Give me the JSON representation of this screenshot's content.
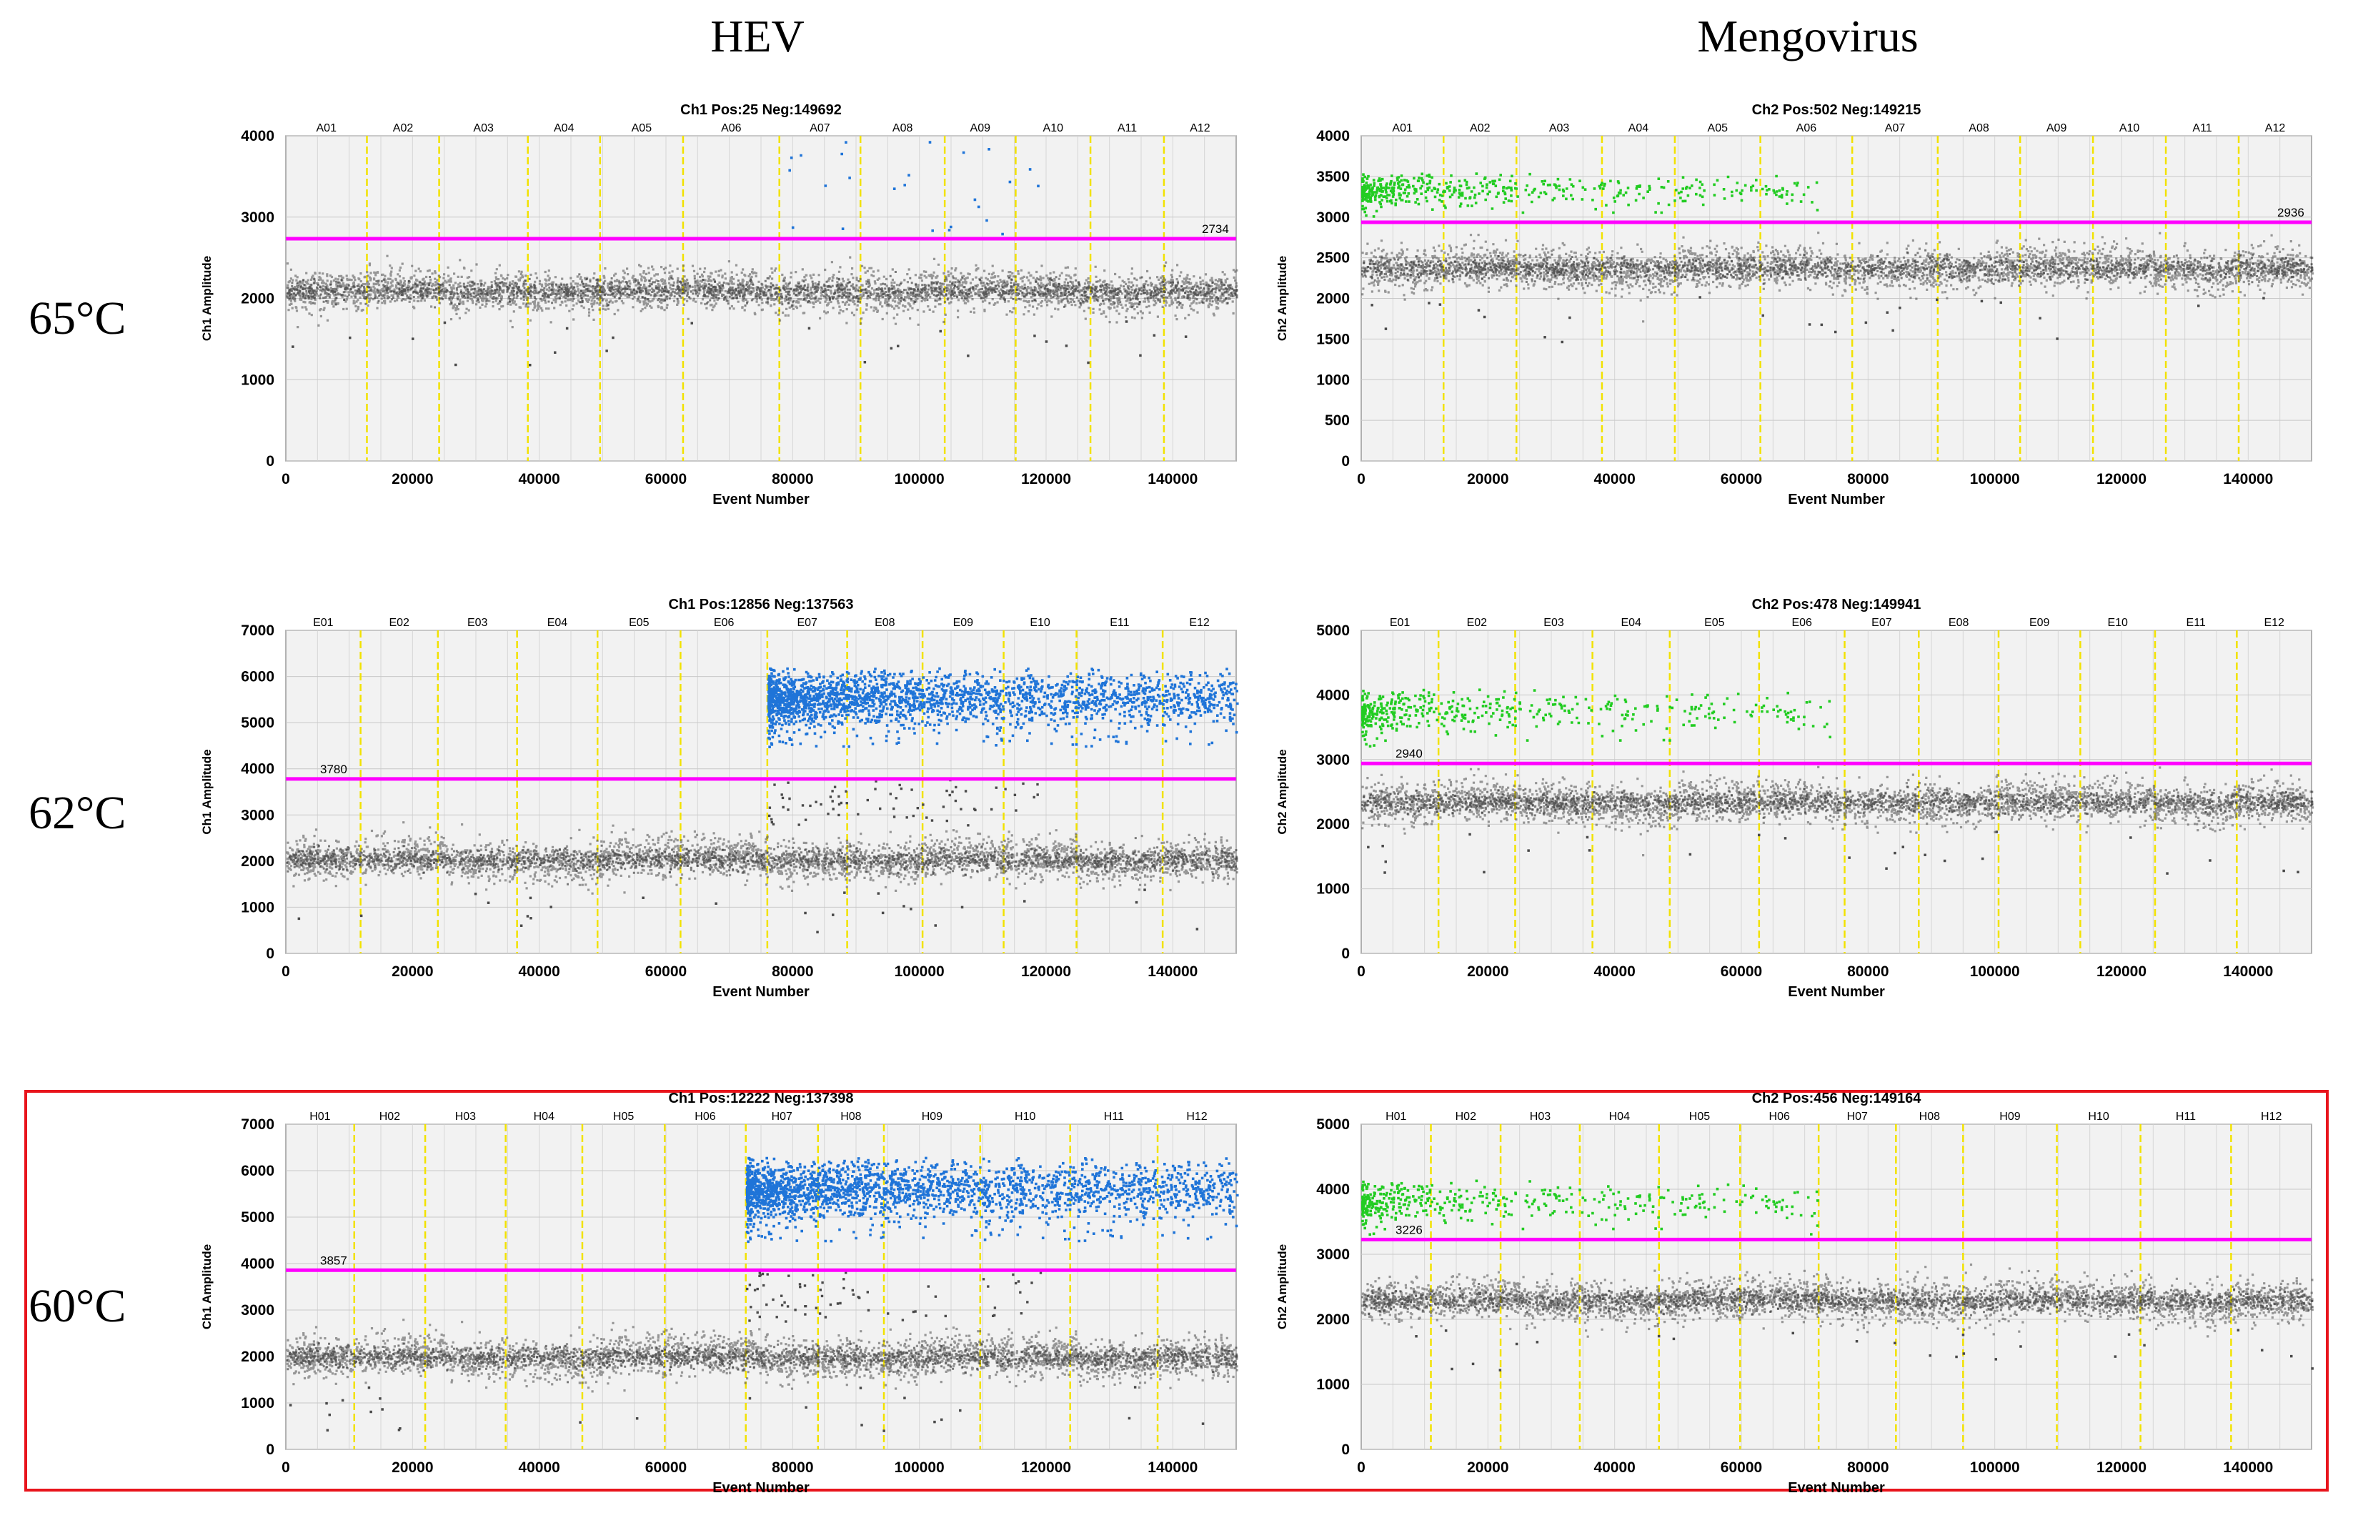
{
  "figure": {
    "column_headers": [
      "HEV",
      "Mengovirus"
    ],
    "row_labels": [
      "65°C",
      "62°C",
      "60°C"
    ],
    "highlighted_row": "60°C",
    "colors": {
      "highlight": "#e8141c",
      "threshold": "#ff00ff",
      "negative": "#4a4a4a",
      "hev_positive": "#1f74d8",
      "mengo_positive": "#22cc22",
      "well_divider": "#f2e200",
      "plot_bg": "#f2f2f2"
    }
  },
  "chart_data": [
    {
      "id": "hev-65",
      "type": "scatter",
      "title": "Ch1 Pos:25 Neg:149692",
      "xlabel": "Event Number",
      "ylabel": "Ch1 Amplitude",
      "xlim": [
        0,
        150000
      ],
      "ylim": [
        0,
        4000
      ],
      "yticks": [
        0,
        1000,
        2000,
        3000,
        4000
      ],
      "xticks": [
        0,
        20000,
        40000,
        60000,
        80000,
        100000,
        120000,
        140000
      ],
      "wells": [
        "A01",
        "A02",
        "A03",
        "A04",
        "A05",
        "A06",
        "A07",
        "A08",
        "A09",
        "A10",
        "A11",
        "A12"
      ],
      "well_boundaries": [
        12800,
        24200,
        38200,
        49600,
        62700,
        77900,
        90700,
        104000,
        115200,
        127000,
        138600
      ],
      "threshold": 2734,
      "threshold_label": "2734",
      "negative_band": 2100,
      "positive_color": "hev",
      "positive_cluster": {
        "count": 25,
        "x_range": [
          79000,
          120000
        ],
        "y_range": [
          2800,
          3950
        ]
      }
    },
    {
      "id": "mengo-65",
      "type": "scatter",
      "title": "Ch2 Pos:502 Neg:149215",
      "xlabel": "Event Number",
      "ylabel": "Ch2 Amplitude",
      "xlim": [
        0,
        150000
      ],
      "ylim": [
        0,
        4000
      ],
      "yticks": [
        0,
        500,
        1000,
        1500,
        2000,
        2500,
        3000,
        3500,
        4000
      ],
      "xticks": [
        0,
        20000,
        40000,
        60000,
        80000,
        100000,
        120000,
        140000
      ],
      "wells": [
        "A01",
        "A02",
        "A03",
        "A04",
        "A05",
        "A06",
        "A07",
        "A08",
        "A09",
        "A10",
        "A11",
        "A12"
      ],
      "well_boundaries": [
        13000,
        24500,
        38000,
        49500,
        63000,
        77500,
        91000,
        104000,
        115500,
        127000,
        138500
      ],
      "threshold": 2936,
      "threshold_label": "2936",
      "negative_band": 2380,
      "positive_color": "mengo",
      "positive_cluster": {
        "count": 502,
        "x_range": [
          0,
          72000
        ],
        "y_range": [
          3000,
          3550
        ]
      }
    },
    {
      "id": "hev-62",
      "type": "scatter",
      "title": "Ch1 Pos:12856 Neg:137563",
      "xlabel": "Event Number",
      "ylabel": "Ch1 Amplitude",
      "xlim": [
        0,
        150000
      ],
      "ylim": [
        0,
        7000
      ],
      "yticks": [
        0,
        1000,
        2000,
        3000,
        4000,
        5000,
        6000,
        7000
      ],
      "xticks": [
        0,
        20000,
        40000,
        60000,
        80000,
        100000,
        120000,
        140000
      ],
      "wells": [
        "E01",
        "E02",
        "E03",
        "E04",
        "E05",
        "E06",
        "E07",
        "E08",
        "E09",
        "E10",
        "E11",
        "E12"
      ],
      "well_boundaries": [
        11800,
        24000,
        36500,
        49200,
        62300,
        76000,
        88600,
        100500,
        113300,
        124800,
        138400
      ],
      "threshold": 3780,
      "threshold_label": "3780",
      "negative_band": 2050,
      "positive_color": "hev",
      "positive_cluster": {
        "count": 12856,
        "x_range": [
          76000,
          150000
        ],
        "y_range": [
          4500,
          6200
        ]
      }
    },
    {
      "id": "mengo-62",
      "type": "scatter",
      "title": "Ch2 Pos:478 Neg:149941",
      "xlabel": "Event Number",
      "ylabel": "Ch2 Amplitude",
      "xlim": [
        0,
        150000
      ],
      "ylim": [
        0,
        5000
      ],
      "yticks": [
        0,
        1000,
        2000,
        3000,
        4000,
        5000
      ],
      "xticks": [
        0,
        20000,
        40000,
        60000,
        80000,
        100000,
        120000,
        140000
      ],
      "wells": [
        "E01",
        "E02",
        "E03",
        "E04",
        "E05",
        "E06",
        "E07",
        "E08",
        "E09",
        "E10",
        "E11",
        "E12"
      ],
      "well_boundaries": [
        12200,
        24300,
        36500,
        48700,
        62800,
        76300,
        88000,
        100600,
        113500,
        125300,
        138200
      ],
      "threshold": 2940,
      "threshold_label": "2940",
      "negative_band": 2350,
      "positive_color": "mengo",
      "positive_cluster": {
        "count": 478,
        "x_range": [
          0,
          74000
        ],
        "y_range": [
          3200,
          4100
        ]
      }
    },
    {
      "id": "hev-60",
      "type": "scatter",
      "title": "Ch1 Pos:12222 Neg:137398",
      "xlabel": "Event Number",
      "ylabel": "Ch1 Amplitude",
      "xlim": [
        0,
        150000
      ],
      "ylim": [
        0,
        7000
      ],
      "yticks": [
        0,
        1000,
        2000,
        3000,
        4000,
        5000,
        6000,
        7000
      ],
      "xticks": [
        0,
        20000,
        40000,
        60000,
        80000,
        100000,
        120000,
        140000
      ],
      "wells": [
        "H01",
        "H02",
        "H03",
        "H04",
        "H05",
        "H06",
        "H07",
        "H08",
        "H09",
        "H10",
        "H11",
        "H12"
      ],
      "well_boundaries": [
        10800,
        22000,
        34700,
        46800,
        59800,
        72600,
        84000,
        94400,
        109600,
        123800,
        137600
      ],
      "threshold": 3857,
      "threshold_label": "3857",
      "negative_band": 2000,
      "positive_color": "hev",
      "positive_cluster": {
        "count": 12222,
        "x_range": [
          72600,
          150000
        ],
        "y_range": [
          4500,
          6300
        ]
      }
    },
    {
      "id": "mengo-60",
      "type": "scatter",
      "title": "Ch2 Pos:456 Neg:149164",
      "xlabel": "Event Number",
      "ylabel": "Ch2 Amplitude",
      "xlim": [
        0,
        150000
      ],
      "ylim": [
        0,
        5000
      ],
      "yticks": [
        0,
        1000,
        2000,
        3000,
        4000,
        5000
      ],
      "xticks": [
        0,
        20000,
        40000,
        60000,
        80000,
        100000,
        120000,
        140000
      ],
      "wells": [
        "H01",
        "H02",
        "H03",
        "H04",
        "H05",
        "H06",
        "H07",
        "H08",
        "H09",
        "H10",
        "H11",
        "H12"
      ],
      "well_boundaries": [
        11000,
        22000,
        34500,
        47000,
        59800,
        72200,
        84400,
        95000,
        109800,
        123000,
        137300
      ],
      "threshold": 3226,
      "threshold_label": "3226",
      "negative_band": 2300,
      "positive_color": "mengo",
      "positive_cluster": {
        "count": 456,
        "x_range": [
          0,
          72000
        ],
        "y_range": [
          3300,
          4150
        ]
      }
    }
  ]
}
